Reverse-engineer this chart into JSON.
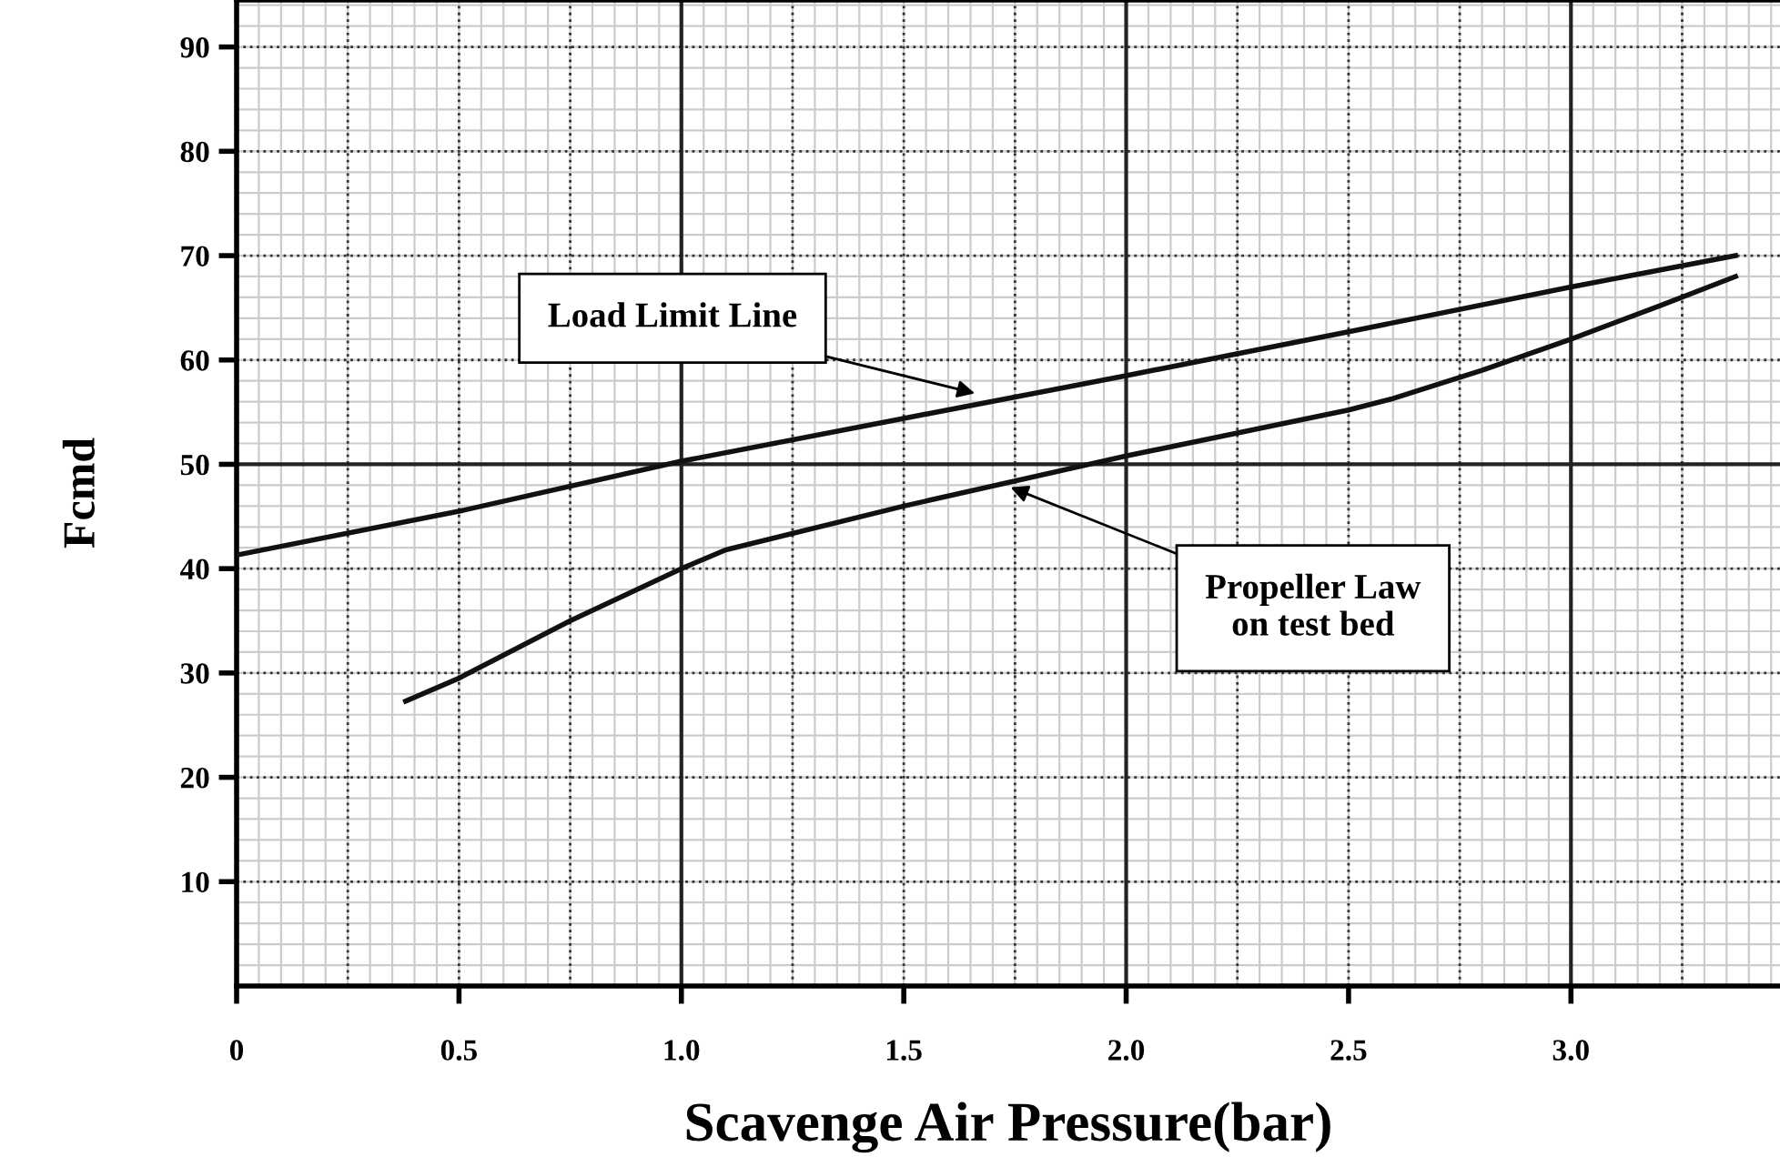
{
  "chart_data": {
    "type": "line",
    "xlabel": "Scavenge Air Pressure(bar)",
    "ylabel": "Fcmd",
    "xlim": [
      0,
      3.47
    ],
    "ylim": [
      0,
      94.5
    ],
    "xticks": [
      {
        "value": 0,
        "label": "0"
      },
      0.5,
      {
        "value": 1.0,
        "label": "1.0"
      },
      1.5,
      {
        "value": 2.0,
        "label": "2.0"
      },
      2.5,
      {
        "value": 3.0,
        "label": "3.0"
      }
    ],
    "yticks": [
      10,
      20,
      30,
      40,
      50,
      60,
      70,
      80,
      90
    ],
    "grid": true,
    "marker": "none",
    "line_style": "solid",
    "series": [
      {
        "color": "#111111",
        "x": [
          0,
          0.5,
          1.0,
          1.5,
          2.0,
          2.5,
          3.0,
          3.37
        ],
        "values": [
          41.3,
          45.5,
          50.3,
          54.4,
          58.5,
          62.7,
          67.0,
          70.0
        ]
      },
      {
        "color": "#111111",
        "x": [
          0.38,
          0.5,
          0.75,
          1.0,
          1.1,
          1.5,
          2.0,
          2.5,
          2.6,
          2.8,
          3.0,
          3.2,
          3.37
        ],
        "values": [
          27.3,
          29.5,
          35.0,
          40.0,
          41.8,
          46.0,
          50.8,
          55.2,
          56.3,
          59.0,
          62.0,
          65.2,
          68.0
        ]
      }
    ],
    "annotations": [
      {
        "text": "Load Limit Line",
        "x": 1.66,
        "y": 56.8
      },
      {
        "text": "Propeller Law\non test bed",
        "x": 1.74,
        "y": 47.8
      }
    ]
  }
}
